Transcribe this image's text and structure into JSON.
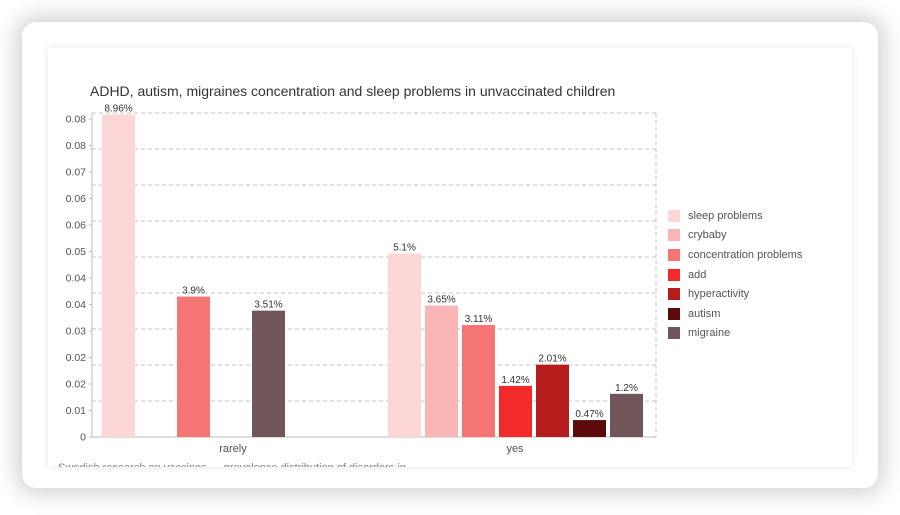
{
  "chart_data": {
    "type": "bar",
    "title": "ADHD, autism, migraines concentration and sleep problems in unvaccinated children",
    "categories": [
      "rarely",
      "yes"
    ],
    "yticks": [
      "0",
      "0.01",
      "0.02",
      "0.02",
      "0.03",
      "0.04",
      "0.04",
      "0.05",
      "0.06",
      "0.06",
      "0.07",
      "0.08",
      "0.08"
    ],
    "ylim": [
      0,
      0.09
    ],
    "grid": "horizontal-dashed",
    "legend_position": "right",
    "series": [
      {
        "name": "sleep problems",
        "color": "#fdd7d7",
        "values": [
          0.0896,
          0.051
        ],
        "labels": [
          "8.96%",
          "5.1%"
        ]
      },
      {
        "name": "crybaby",
        "color": "#fab5b5",
        "values": [
          null,
          0.0365
        ],
        "labels": [
          "",
          "3.65%"
        ]
      },
      {
        "name": "concentration problems",
        "color": "#f57474",
        "values": [
          0.039,
          0.0311
        ],
        "labels": [
          "3.9%",
          "3.11%"
        ]
      },
      {
        "name": "add",
        "color": "#f22a2a",
        "values": [
          null,
          0.0142
        ],
        "labels": [
          "",
          "1.42%"
        ]
      },
      {
        "name": "hyperactivity",
        "color": "#b51c1c",
        "values": [
          null,
          0.0201
        ],
        "labels": [
          "",
          "2.01%"
        ]
      },
      {
        "name": "autism",
        "color": "#5c0a0a",
        "values": [
          null,
          0.0047
        ],
        "labels": [
          "",
          "0.47%"
        ]
      },
      {
        "name": "migraine",
        "color": "#70565a",
        "values": [
          0.0351,
          0.012
        ],
        "labels": [
          "3.51%",
          "1.2%"
        ]
      }
    ]
  },
  "footer_text": "Swedish research on vaccines — prevalence distribution of disorders in..."
}
